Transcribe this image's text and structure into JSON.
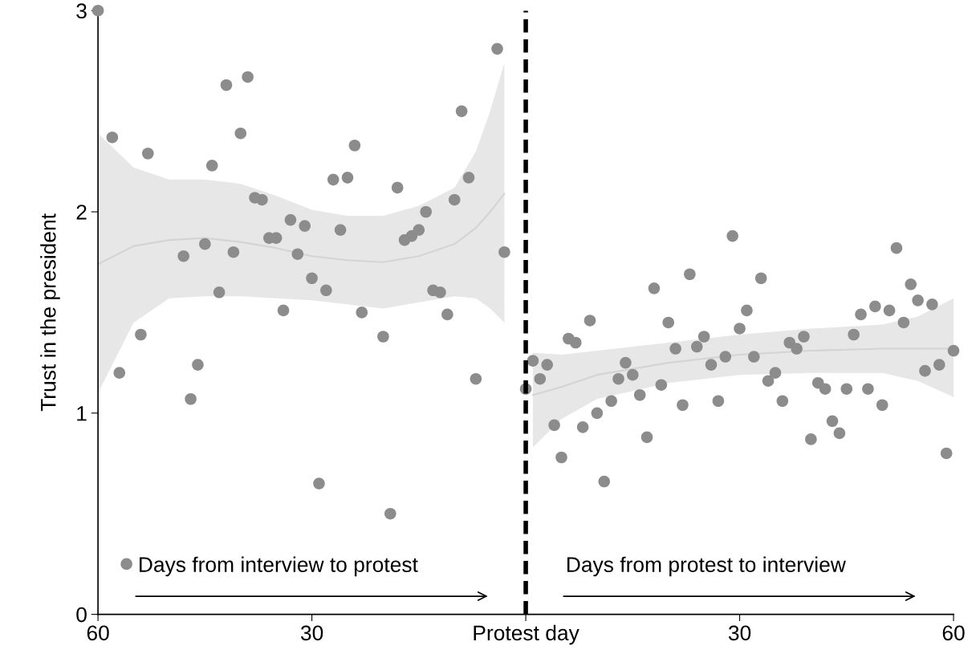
{
  "chart_data": {
    "type": "scatter",
    "ylabel": "Trust in the president",
    "xlim": [
      -60,
      60
    ],
    "ylim": [
      0,
      3
    ],
    "xticks": [
      {
        "value": -60,
        "label": "60"
      },
      {
        "value": -30,
        "label": "30"
      },
      {
        "value": 0,
        "label": "Protest day"
      },
      30,
      60
    ],
    "yticks": [
      0,
      1,
      2,
      3
    ],
    "grid": false,
    "annotations": [
      "Days from interview to protest",
      "Days from protest to interview"
    ],
    "ref_lines": [
      {
        "axis": "x",
        "value": 0,
        "color": "#000000",
        "line_style": "dashed"
      }
    ],
    "series": [
      {
        "type": "line",
        "marker": "none",
        "color": "#d4d4d4",
        "x": [
          -60,
          -55,
          -50,
          -45,
          -40,
          -35,
          -30,
          -25,
          -20,
          -15,
          -10,
          -7,
          -5,
          -3
        ],
        "values": [
          1.74,
          1.83,
          1.86,
          1.87,
          1.85,
          1.82,
          1.78,
          1.76,
          1.75,
          1.78,
          1.84,
          1.92,
          2.0,
          2.09
        ],
        "lower": [
          1.1,
          1.45,
          1.57,
          1.58,
          1.58,
          1.57,
          1.56,
          1.54,
          1.52,
          1.55,
          1.58,
          1.57,
          1.52,
          1.45
        ],
        "upper": [
          2.39,
          2.22,
          2.16,
          2.16,
          2.14,
          2.08,
          2.01,
          1.98,
          1.98,
          2.03,
          2.12,
          2.3,
          2.5,
          2.74
        ]
      },
      {
        "type": "line",
        "marker": "none",
        "color": "#d4d4d4",
        "x": [
          1,
          5,
          10,
          20,
          30,
          40,
          50,
          55,
          60
        ],
        "values": [
          1.09,
          1.13,
          1.19,
          1.25,
          1.29,
          1.31,
          1.32,
          1.32,
          1.32
        ],
        "lower": [
          0.83,
          0.97,
          1.07,
          1.15,
          1.19,
          1.2,
          1.2,
          1.16,
          1.08
        ],
        "upper": [
          1.3,
          1.29,
          1.31,
          1.35,
          1.39,
          1.42,
          1.44,
          1.48,
          1.57
        ]
      },
      {
        "marker": "circle",
        "color": "#8c8c8c",
        "x": [
          -60,
          -58,
          -57,
          -56,
          -54,
          -53,
          -48,
          -47,
          -46,
          -45,
          -44,
          -43,
          -42,
          -41,
          -40,
          -39,
          -38,
          -37,
          -36,
          -35,
          -34,
          -33,
          -32,
          -31,
          -30,
          -29,
          -28,
          -27,
          -26,
          -25,
          -24,
          -23,
          -20,
          -19,
          -18,
          -17,
          -16,
          -15,
          -14,
          -13,
          -12,
          -11,
          -10,
          -9,
          -8,
          -7,
          -4,
          -3,
          0,
          1,
          2,
          3,
          4,
          5,
          6,
          7,
          8,
          9,
          10,
          11,
          12,
          13,
          14,
          15,
          16,
          17,
          18,
          19,
          20,
          21,
          22,
          23,
          24,
          25,
          26,
          27,
          28,
          29,
          30,
          31,
          32,
          33,
          34,
          35,
          36,
          37,
          38,
          39,
          40,
          41,
          42,
          43,
          44,
          45,
          46,
          47,
          48,
          49,
          50,
          51,
          52,
          53,
          54,
          55,
          56,
          57,
          58,
          59,
          60
        ],
        "values": [
          3.0,
          2.37,
          1.2,
          0.25,
          1.39,
          2.29,
          1.78,
          1.07,
          1.24,
          1.84,
          2.23,
          1.6,
          2.63,
          1.8,
          2.39,
          2.67,
          2.07,
          2.06,
          1.87,
          1.87,
          1.51,
          1.96,
          1.79,
          1.93,
          1.67,
          0.65,
          1.61,
          2.16,
          1.91,
          2.17,
          2.33,
          1.5,
          1.38,
          0.5,
          2.12,
          1.86,
          1.88,
          1.91,
          2.0,
          1.61,
          1.6,
          1.49,
          2.06,
          2.5,
          2.17,
          1.17,
          2.81,
          1.8,
          1.12,
          1.26,
          1.17,
          1.24,
          0.94,
          0.78,
          1.37,
          1.35,
          0.93,
          1.46,
          1.0,
          0.66,
          1.06,
          1.17,
          1.25,
          1.19,
          1.09,
          0.88,
          1.62,
          1.14,
          1.45,
          1.32,
          1.04,
          1.69,
          1.33,
          1.38,
          1.24,
          1.06,
          1.28,
          1.88,
          1.42,
          1.51,
          1.28,
          1.67,
          1.16,
          1.2,
          1.06,
          1.35,
          1.32,
          1.38,
          0.87,
          1.15,
          1.12,
          0.96,
          0.9,
          1.12,
          1.39,
          1.49,
          1.12,
          1.53,
          1.04,
          1.51,
          1.82,
          1.45,
          1.64,
          1.56,
          1.21,
          1.54,
          1.24,
          0.8,
          1.31
        ]
      }
    ]
  }
}
